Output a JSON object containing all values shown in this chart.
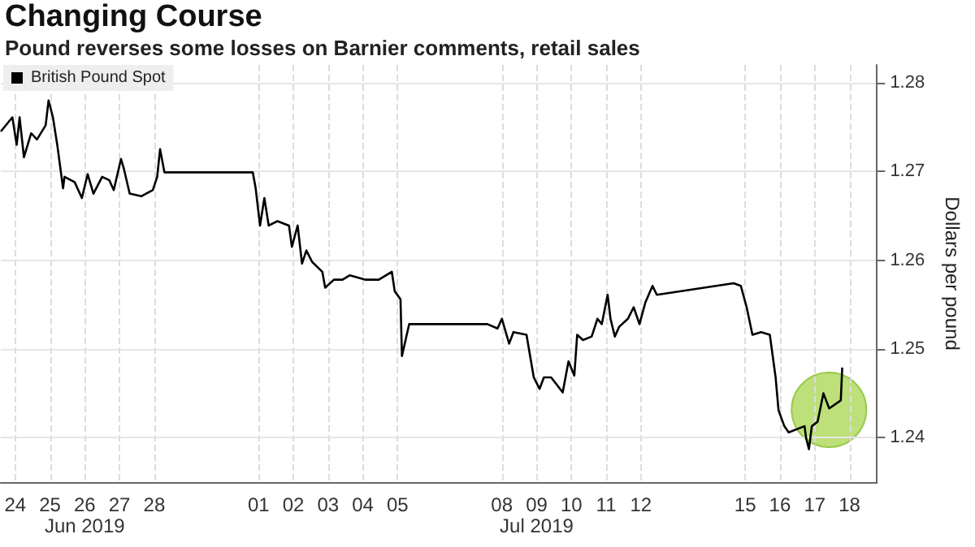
{
  "chart_data": {
    "type": "line",
    "title": "Changing Course",
    "subtitle": "Pound reverses some losses on Barnier comments, retail sales",
    "ylabel": "Dollars per pound",
    "annotations": [
      "Jun 2019",
      "Jul 2019"
    ],
    "x": [
      "2019-06-24T02:00",
      "2019-06-24T10:00",
      "2019-06-24T13:00",
      "2019-06-24T15:00",
      "2019-06-24T18:00",
      "2019-06-24T23:00",
      "2019-06-25T03:00",
      "2019-06-25T09:00",
      "2019-06-25T11:00",
      "2019-06-25T14:00",
      "2019-06-25T17:00",
      "2019-06-25T21:00",
      "2019-06-25T22:00",
      "2019-06-26T05:00",
      "2019-06-26T10:00",
      "2019-06-26T14:00",
      "2019-06-26T18:00",
      "2019-06-27T00:00",
      "2019-06-27T05:00",
      "2019-06-27T08:00",
      "2019-06-27T13:00",
      "2019-06-27T15:00",
      "2019-06-27T19:00",
      "2019-06-28T03:00",
      "2019-06-28T11:00",
      "2019-06-28T14:00",
      "2019-06-28T16:00",
      "2019-06-28T19:00",
      "2019-07-01T04:00",
      "2019-07-01T08:00",
      "2019-07-01T10:00",
      "2019-07-01T13:00",
      "2019-07-01T16:00",
      "2019-07-01T19:00",
      "2019-07-02T01:00",
      "2019-07-02T09:00",
      "2019-07-02T11:00",
      "2019-07-02T15:00",
      "2019-07-02T18:00",
      "2019-07-02T21:00",
      "2019-07-03T01:00",
      "2019-07-03T08:00",
      "2019-07-03T10:00",
      "2019-07-03T16:00",
      "2019-07-03T22:00",
      "2019-07-04T03:00",
      "2019-07-04T14:00",
      "2019-07-04T23:00",
      "2019-07-05T08:00",
      "2019-07-05T10:00",
      "2019-07-05T14:00",
      "2019-07-05T15:00",
      "2019-07-05T20:00",
      "2019-07-08T02:00",
      "2019-07-08T09:00",
      "2019-07-08T12:00",
      "2019-07-08T17:00",
      "2019-07-08T20:00",
      "2019-07-09T05:00",
      "2019-07-09T10:00",
      "2019-07-09T14:00",
      "2019-07-09T17:00",
      "2019-07-09T22:00",
      "2019-07-10T06:00",
      "2019-07-10T10:00",
      "2019-07-10T14:00",
      "2019-07-10T16:00",
      "2019-07-10T20:00",
      "2019-07-11T02:00",
      "2019-07-11T06:00",
      "2019-07-11T09:00",
      "2019-07-11T13:00",
      "2019-07-11T15:00",
      "2019-07-11T18:00",
      "2019-07-11T21:00",
      "2019-07-12T03:00",
      "2019-07-12T07:00",
      "2019-07-12T11:00",
      "2019-07-12T15:00",
      "2019-07-12T20:00",
      "2019-07-12T23:00",
      "2019-07-15T04:00",
      "2019-07-15T09:00",
      "2019-07-15T13:00",
      "2019-07-15T17:00",
      "2019-07-15T23:00",
      "2019-07-16T05:00",
      "2019-07-16T09:00",
      "2019-07-16T11:00",
      "2019-07-16T15:00",
      "2019-07-16T18:00",
      "2019-07-17T05:00",
      "2019-07-17T06:00",
      "2019-07-17T08:00",
      "2019-07-17T10:00",
      "2019-07-17T14:00",
      "2019-07-17T18:00",
      "2019-07-17T22:00",
      "2019-07-18T06:00",
      "2019-07-18T07:00"
    ],
    "series": [
      {
        "name": "British Pound Spot",
        "color": "#000000",
        "values": [
          1.2745,
          1.2761,
          1.273,
          1.2761,
          1.2716,
          1.2743,
          1.2736,
          1.2752,
          1.278,
          1.2761,
          1.273,
          1.2681,
          1.2694,
          1.2688,
          1.267,
          1.2697,
          1.2675,
          1.2694,
          1.269,
          1.2679,
          1.2714,
          1.2703,
          1.2675,
          1.2672,
          1.2679,
          1.2694,
          1.2725,
          1.2699,
          1.2699,
          1.2699,
          1.2681,
          1.2639,
          1.267,
          1.2639,
          1.2644,
          1.2639,
          1.2615,
          1.2639,
          1.2596,
          1.2611,
          1.2598,
          1.2587,
          1.2569,
          1.2578,
          1.2578,
          1.2583,
          1.2578,
          1.2578,
          1.2587,
          1.2565,
          1.2556,
          1.2492,
          1.2528,
          1.2528,
          1.2523,
          1.2534,
          1.2506,
          1.2519,
          1.2516,
          1.2468,
          1.2455,
          1.2468,
          1.2468,
          1.2451,
          1.2486,
          1.247,
          1.2516,
          1.251,
          1.2514,
          1.2534,
          1.2528,
          1.2561,
          1.2534,
          1.2514,
          1.2525,
          1.2534,
          1.2547,
          1.2528,
          1.2552,
          1.2571,
          1.2561,
          1.2574,
          1.2571,
          1.2547,
          1.2516,
          1.2519,
          1.2516,
          1.2468,
          1.2431,
          1.2413,
          1.2406,
          1.2413,
          1.24,
          1.2387,
          1.2413,
          1.2418,
          1.245,
          1.2433,
          1.2442,
          1.2479
        ]
      }
    ],
    "xlim": [
      "2019-06-24T02:00",
      "2019-07-19T07:00"
    ],
    "xticks": [
      {
        "value": "2019-06-24T12:00",
        "label": "24"
      },
      {
        "value": "2019-06-25T12:00",
        "label": "25"
      },
      {
        "value": "2019-06-26T12:00",
        "label": "26"
      },
      {
        "value": "2019-06-27T12:00",
        "label": "27"
      },
      {
        "value": "2019-06-28T12:00",
        "label": "28"
      },
      {
        "value": "2019-07-01T12:00",
        "label": "01"
      },
      {
        "value": "2019-07-02T12:00",
        "label": "02"
      },
      {
        "value": "2019-07-03T12:00",
        "label": "03"
      },
      {
        "value": "2019-07-04T12:00",
        "label": "04"
      },
      {
        "value": "2019-07-05T12:00",
        "label": "05"
      },
      {
        "value": "2019-07-08T12:00",
        "label": "08"
      },
      {
        "value": "2019-07-09T12:00",
        "label": "09"
      },
      {
        "value": "2019-07-10T12:00",
        "label": "10"
      },
      {
        "value": "2019-07-11T12:00",
        "label": "11"
      },
      {
        "value": "2019-07-12T12:00",
        "label": "12"
      },
      {
        "value": "2019-07-15T12:00",
        "label": "15"
      },
      {
        "value": "2019-07-16T12:00",
        "label": "16"
      },
      {
        "value": "2019-07-17T12:00",
        "label": "17"
      },
      {
        "value": "2019-07-18T12:00",
        "label": "18"
      }
    ],
    "ylim": [
      1.235,
      1.282
    ],
    "yticks": [
      1.24,
      1.25,
      1.26,
      1.27,
      1.28
    ],
    "grid": true,
    "legend": "top left",
    "marker": "none",
    "line_style": "solid"
  }
}
